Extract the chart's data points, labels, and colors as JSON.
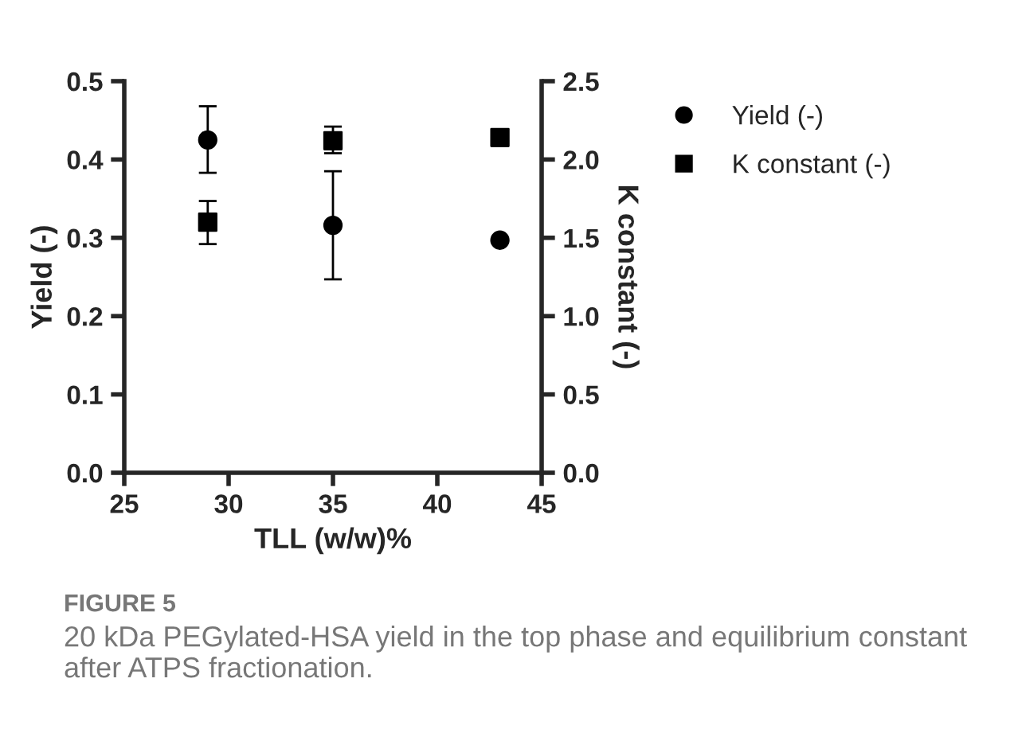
{
  "chart_data": {
    "type": "scatter",
    "xlabel": "TLL (w/w)%",
    "ylabel": "Yield (-)",
    "y2label": "K constant (-)",
    "x": [
      29,
      35,
      43
    ],
    "series": [
      {
        "name": "Yield (-)",
        "color": "#000000",
        "marker": "circle",
        "values": [
          0.425,
          0.316,
          0.297
        ],
        "errors": [
          [
            0.383,
            0.468
          ],
          [
            0.247,
            0.385
          ],
          null
        ]
      },
      {
        "name": "K constant (-)",
        "color": "#000000",
        "marker": "square",
        "axis": "y2",
        "values": [
          1.6,
          2.12,
          2.14
        ],
        "errors": [
          [
            1.46,
            1.735
          ],
          [
            2.04,
            2.21
          ],
          null
        ]
      }
    ],
    "xlim": [
      25,
      45
    ],
    "xticks": [
      25,
      30,
      35,
      40,
      45
    ],
    "ylim": [
      0,
      0.5
    ],
    "yticks": [
      {
        "value": 0,
        "label": "0.0"
      },
      0.1,
      0.2,
      0.3,
      0.4,
      0.5
    ],
    "y2lim": [
      0,
      2.5
    ],
    "y2ticks": [
      {
        "value": 0,
        "label": "0.0"
      },
      0.5,
      {
        "value": 1,
        "label": "1.0"
      },
      1.5,
      {
        "value": 2,
        "label": "2.0"
      },
      2.5
    ],
    "grid": false,
    "legend": "top right",
    "annotations": [
      "FIGURE 5",
      "20 kDa PEGylated-HSA yield in the top phase and equilibrium constant after ATPS fractionation."
    ]
  }
}
